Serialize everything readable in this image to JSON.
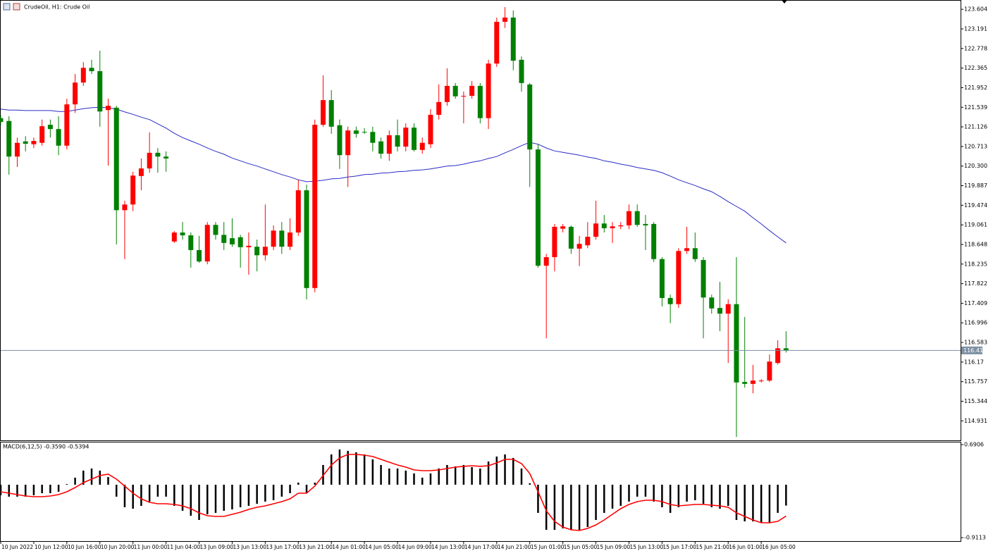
{
  "chart_data": [
    {
      "type": "candlestick",
      "title": "CrudeOil, H1:  Crude Oil",
      "categories": [
        "10 Jun 2022",
        null,
        null,
        null,
        "10 Jun 12:00",
        null,
        null,
        null,
        "10 Jun 16:00",
        null,
        null,
        null,
        "10 Jun 20:00",
        null,
        null,
        null,
        "11 Jun 00:00",
        null,
        null,
        null,
        "11 Jun 04:00",
        null,
        null,
        null,
        "13 Jun 09:00",
        null,
        null,
        null,
        "13 Jun 13:00",
        null,
        null,
        null,
        "13 Jun 17:00",
        null,
        null,
        null,
        "13 Jun 21:00",
        null,
        null,
        null,
        "14 Jun 01:00",
        null,
        null,
        null,
        "14 Jun 05:00",
        null,
        null,
        null,
        "14 Jun 09:00",
        null,
        null,
        null,
        "14 Jun 13:00",
        null,
        null,
        null,
        "14 Jun 17:00",
        null,
        null,
        null,
        "14 Jun 21:00",
        null,
        null,
        null,
        "15 Jun 01:00",
        null,
        null,
        null,
        "15 Jun 05:00",
        null,
        null,
        null,
        "15 Jun 09:00",
        null,
        null,
        null,
        "15 Jun 13:00",
        null,
        null,
        null,
        "15 Jun 17:00",
        null,
        null,
        null,
        "15 Jun 21:00",
        null,
        null,
        null,
        "16 Jun 01:00",
        null,
        null,
        null,
        "16 Jun 05:00",
        null,
        null,
        null
      ],
      "open": [
        121.31,
        121.25,
        120.5,
        120.82,
        120.76,
        120.79,
        121.17,
        121.08,
        120.73,
        121.6,
        122.06,
        122.37,
        122.3,
        121.48,
        121.53,
        119.37,
        119.49,
        120.09,
        120.25,
        120.58,
        120.5,
        118.71,
        118.9,
        118.84,
        118.53,
        118.29,
        119.06,
        118.85,
        118.78,
        118.8,
        118.59,
        118.6,
        118.42,
        118.6,
        118.94,
        118.6,
        118.9,
        119.79,
        117.73,
        121.17,
        121.69,
        121.16,
        120.53,
        121.05,
        121.02,
        121.02,
        120.82,
        120.56,
        120.95,
        120.71,
        121.11,
        120.64,
        120.76,
        121.38,
        121.65,
        121.99,
        121.77,
        121.78,
        121.99,
        121.31,
        122.46,
        123.34,
        123.43,
        122.54,
        122.02,
        120.65,
        118.2,
        118.38,
        118.98,
        119.02,
        118.56,
        118.63,
        118.81,
        119.09,
        118.99,
        119.03,
        119.05,
        119.35,
        119.08,
        119.08,
        118.34,
        117.52,
        117.39,
        118.51,
        118.57,
        118.32,
        117.53,
        117.31,
        117.19,
        117.39,
        115.75,
        115.71,
        115.77,
        115.78,
        116.15,
        116.46
      ],
      "high": [
        121.38,
        121.35,
        120.9,
        120.93,
        120.9,
        121.28,
        121.28,
        121.35,
        121.72,
        122.24,
        122.49,
        122.54,
        122.73,
        121.72,
        121.57,
        119.57,
        120.18,
        120.46,
        121.01,
        120.68,
        120.61,
        118.93,
        119.12,
        118.9,
        118.83,
        119.12,
        119.12,
        119.12,
        119.2,
        118.85,
        118.9,
        118.75,
        119.49,
        119.05,
        119.12,
        119.2,
        120.01,
        119.91,
        121.28,
        122.21,
        121.9,
        121.28,
        121.13,
        121.13,
        121.1,
        121.13,
        120.9,
        121.05,
        121.28,
        121.2,
        121.2,
        120.9,
        121.5,
        122.02,
        122.36,
        122.05,
        121.87,
        122.09,
        122.05,
        122.54,
        123.43,
        123.65,
        123.58,
        122.61,
        122.05,
        120.76,
        118.45,
        119.08,
        119.08,
        119.05,
        118.83,
        119.12,
        119.57,
        119.27,
        119.12,
        119.12,
        119.49,
        119.49,
        119.27,
        119.12,
        118.38,
        117.59,
        118.57,
        119.02,
        118.9,
        118.38,
        117.59,
        117.86,
        117.49,
        118.38,
        117.12,
        116.11,
        115.81,
        116.33,
        116.63,
        116.82
      ],
      "low": [
        121.16,
        120.12,
        120.28,
        120.61,
        120.68,
        120.73,
        120.9,
        120.53,
        120.65,
        121.42,
        121.99,
        122.24,
        121.13,
        120.31,
        118.65,
        118.34,
        119.35,
        119.79,
        120.16,
        120.16,
        120.18,
        118.68,
        118.75,
        118.16,
        118.26,
        118.23,
        118.75,
        118.53,
        118.6,
        118.16,
        118.01,
        118.08,
        118.31,
        118.53,
        118.45,
        118.53,
        118.83,
        117.49,
        117.64,
        121.13,
        120.98,
        120.24,
        119.86,
        120.9,
        120.98,
        120.61,
        120.46,
        120.41,
        120.61,
        120.61,
        120.61,
        120.56,
        120.68,
        121.28,
        121.57,
        121.72,
        121.2,
        121.72,
        121.2,
        121.08,
        122.39,
        123.21,
        122.32,
        121.87,
        119.86,
        118.16,
        116.67,
        118.08,
        118.9,
        118.45,
        118.19,
        118.57,
        118.75,
        118.9,
        118.68,
        118.97,
        118.97,
        119.02,
        118.53,
        118.28,
        117.34,
        116.99,
        117.31,
        118.45,
        118.28,
        116.67,
        117.19,
        116.82,
        116.15,
        114.59,
        115.63,
        115.51,
        115.74,
        115.75,
        116.12,
        116.37
      ],
      "close": [
        121.23,
        120.5,
        120.79,
        120.77,
        120.83,
        121.14,
        121.08,
        120.73,
        121.6,
        122.06,
        122.37,
        122.3,
        121.45,
        121.57,
        119.37,
        119.49,
        120.1,
        120.25,
        120.58,
        120.5,
        120.46,
        118.9,
        118.84,
        118.53,
        118.29,
        119.06,
        118.85,
        118.68,
        118.65,
        118.59,
        118.62,
        118.42,
        118.6,
        118.94,
        118.6,
        118.9,
        119.79,
        117.73,
        121.17,
        121.69,
        121.13,
        120.53,
        121.05,
        120.98,
        121.01,
        120.79,
        120.56,
        120.95,
        120.71,
        121.11,
        120.64,
        120.79,
        121.38,
        121.65,
        121.99,
        121.77,
        121.78,
        121.99,
        121.31,
        122.46,
        123.34,
        123.43,
        122.52,
        122.05,
        120.65,
        118.2,
        118.38,
        119.02,
        119.03,
        118.56,
        118.66,
        118.81,
        119.09,
        118.99,
        119.03,
        119.05,
        119.35,
        119.06,
        119.05,
        118.34,
        117.52,
        117.39,
        118.51,
        118.57,
        118.34,
        117.53,
        117.3,
        117.19,
        117.39,
        115.74,
        115.71,
        115.78,
        115.78,
        116.18,
        116.46,
        116.415
      ],
      "up_color": "#ff0000",
      "down_color": "#008000",
      "moving_average": {
        "color": "#2a2ac8",
        "values": [
          121.5,
          121.48,
          121.48,
          121.47,
          121.47,
          121.47,
          121.47,
          121.45,
          121.45,
          121.48,
          121.51,
          121.53,
          121.54,
          121.53,
          121.5,
          121.44,
          121.39,
          121.33,
          121.28,
          121.19,
          121.1,
          120.99,
          120.9,
          120.83,
          120.76,
          120.68,
          120.61,
          120.55,
          120.47,
          120.41,
          120.35,
          120.3,
          120.24,
          120.18,
          120.12,
          120.07,
          120.01,
          119.97,
          119.98,
          120.0,
          120.03,
          120.04,
          120.07,
          120.09,
          120.12,
          120.13,
          120.15,
          120.16,
          120.18,
          120.19,
          120.21,
          120.22,
          120.24,
          120.27,
          120.3,
          120.31,
          120.34,
          120.38,
          120.41,
          120.46,
          120.5,
          120.58,
          120.65,
          120.73,
          120.8,
          120.76,
          120.68,
          120.62,
          120.59,
          120.56,
          120.53,
          120.49,
          120.46,
          120.41,
          120.38,
          120.34,
          120.31,
          120.27,
          120.24,
          120.21,
          120.16,
          120.09,
          120.01,
          119.95,
          119.89,
          119.82,
          119.76,
          119.66,
          119.55,
          119.45,
          119.35,
          119.21,
          119.08,
          118.94,
          118.81,
          118.68
        ]
      },
      "last_price": 116.415,
      "last_price_color": "#7d8fa3",
      "ylim": [
        114.52,
        123.77
      ],
      "yticks": [
        123.604,
        123.191,
        122.778,
        122.365,
        121.952,
        121.539,
        121.126,
        120.713,
        {
          "value": 120.3,
          "label": "120.300"
        },
        119.887,
        119.474,
        119.061,
        118.648,
        118.235,
        117.822,
        117.409,
        116.996,
        116.583,
        116.17,
        115.757,
        115.344,
        114.931
      ]
    },
    {
      "type": "macd",
      "title": "MACD(6,12,5) -0.3590 -0.5394",
      "histogram": {
        "color": "#000000",
        "values": [
          -0.182,
          -0.206,
          -0.206,
          -0.206,
          -0.182,
          -0.146,
          -0.146,
          -0.121,
          0.012,
          0.121,
          0.243,
          0.279,
          0.243,
          0.133,
          -0.206,
          -0.388,
          -0.413,
          -0.364,
          -0.291,
          -0.206,
          -0.206,
          -0.364,
          -0.449,
          -0.534,
          -0.607,
          -0.51,
          -0.485,
          -0.449,
          -0.425,
          -0.388,
          -0.364,
          -0.328,
          -0.291,
          -0.267,
          -0.206,
          -0.146,
          0.036,
          -0.146,
          0.036,
          0.34,
          0.522,
          0.607,
          0.583,
          0.558,
          0.522,
          0.437,
          0.34,
          0.279,
          0.279,
          0.243,
          0.194,
          0.121,
          0.194,
          0.279,
          0.34,
          0.316,
          0.34,
          0.303,
          0.279,
          0.4,
          0.485,
          0.522,
          0.461,
          0.279,
          0.024,
          -0.485,
          -0.777,
          -0.777,
          -0.752,
          -0.777,
          -0.777,
          -0.728,
          -0.607,
          -0.485,
          -0.413,
          -0.364,
          -0.291,
          -0.206,
          -0.206,
          -0.291,
          -0.388,
          -0.485,
          -0.388,
          -0.291,
          -0.267,
          -0.328,
          -0.388,
          -0.413,
          -0.364,
          -0.607,
          -0.631,
          -0.631,
          -0.655,
          -0.655,
          -0.485,
          -0.359
        ]
      },
      "signal": {
        "color": "#ff0000",
        "values": [
          -0.121,
          -0.146,
          -0.17,
          -0.194,
          -0.206,
          -0.206,
          -0.194,
          -0.17,
          -0.121,
          -0.049,
          0.036,
          0.097,
          0.158,
          0.182,
          0.097,
          -0.024,
          -0.146,
          -0.243,
          -0.303,
          -0.328,
          -0.328,
          -0.34,
          -0.364,
          -0.413,
          -0.485,
          -0.534,
          -0.546,
          -0.546,
          -0.51,
          -0.473,
          -0.425,
          -0.388,
          -0.364,
          -0.328,
          -0.291,
          -0.243,
          -0.146,
          -0.146,
          -0.024,
          0.158,
          0.34,
          0.461,
          0.522,
          0.522,
          0.51,
          0.485,
          0.437,
          0.388,
          0.34,
          0.303,
          0.255,
          0.243,
          0.243,
          0.255,
          0.279,
          0.303,
          0.316,
          0.328,
          0.316,
          0.328,
          0.376,
          0.437,
          0.437,
          0.364,
          0.194,
          -0.121,
          -0.449,
          -0.631,
          -0.728,
          -0.777,
          -0.789,
          -0.752,
          -0.692,
          -0.607,
          -0.51,
          -0.413,
          -0.34,
          -0.291,
          -0.267,
          -0.267,
          -0.291,
          -0.34,
          -0.364,
          -0.352,
          -0.34,
          -0.34,
          -0.352,
          -0.364,
          -0.388,
          -0.485,
          -0.546,
          -0.607,
          -0.655,
          -0.655,
          -0.631,
          -0.539
        ]
      },
      "ylim": [
        -0.971,
        0.74
      ],
      "yticks": [
        0.6906,
        -0.9113
      ]
    }
  ]
}
